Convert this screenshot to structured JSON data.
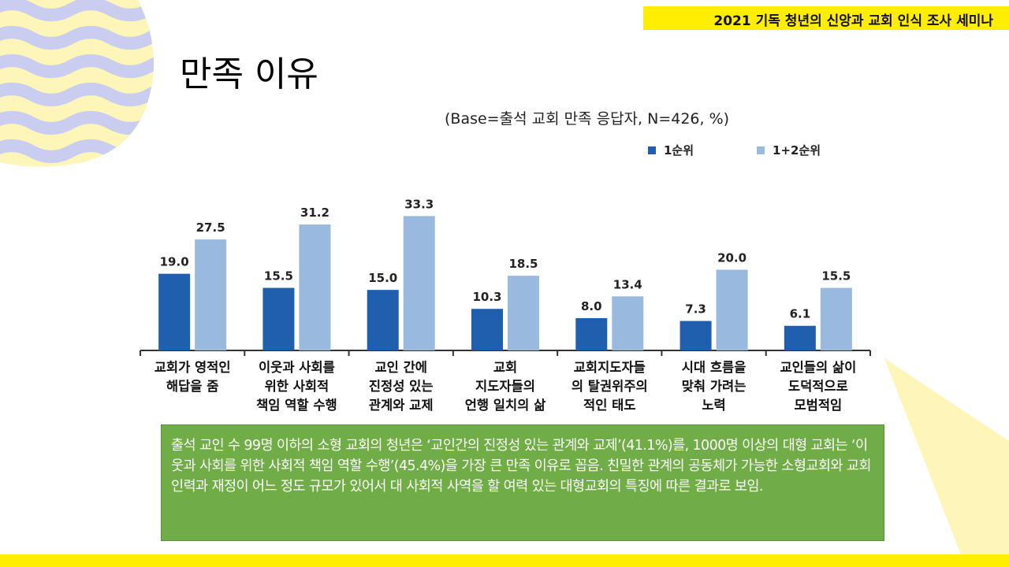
{
  "header": {
    "banner": "2021 기독 청년의 신앙과 교회 인식 조사 세미나"
  },
  "page": {
    "title": "만족 이유",
    "subtitle": "(Base=출석 교회 만족 응답자, N=426, %)"
  },
  "colors": {
    "banner": "#ffee00",
    "series1": "#1f5fad",
    "series2": "#9ab9de",
    "summary_bg": "#70ad47"
  },
  "chart_data": {
    "type": "bar",
    "title": "",
    "xlabel": "",
    "ylabel": "",
    "ylim": [
      0,
      40
    ],
    "legend_position": "top-right",
    "categories": [
      [
        "교회가 영적인",
        "해답을 줌"
      ],
      [
        "이웃과 사회를",
        "위한 사회적",
        "책임 역할 수행"
      ],
      [
        "교인 간에",
        "진정성 있는",
        "관계와 교제"
      ],
      [
        "교회",
        "지도자들의",
        "언행 일치의 삶"
      ],
      [
        "교회지도자들",
        "의 탈권위주의",
        "적인 태도"
      ],
      [
        "시대 흐름을",
        "맞춰 가려는",
        "노력"
      ],
      [
        "교인들의 삶이",
        "도덕적으로",
        "모범적임"
      ]
    ],
    "series": [
      {
        "name": "1순위",
        "values": [
          19.0,
          15.5,
          15.0,
          10.3,
          8.0,
          7.3,
          6.1
        ]
      },
      {
        "name": "1+2순위",
        "values": [
          27.5,
          31.2,
          33.3,
          18.5,
          13.4,
          20.0,
          15.5
        ]
      }
    ]
  },
  "summary": {
    "text": "출석 교인 수 99명 이하의 소형 교회의 청년은 ‘교인간의 진정성 있는 관계와 교제’(41.1%)를, 1000명 이상의 대형 교회는 ‘이웃과 사회를 위한 사회적 책임 역할 수행’(45.4%)을 가장 큰 만족 이유로 꼽음. 친밀한 관계의 공동체가 가능한 소형교회와 교회 인력과 재정이 어느 정도 규모가 있어서 대 사회적 사역을 할 여력 있는 대형교회의 특징에 따른 결과로 보임."
  }
}
